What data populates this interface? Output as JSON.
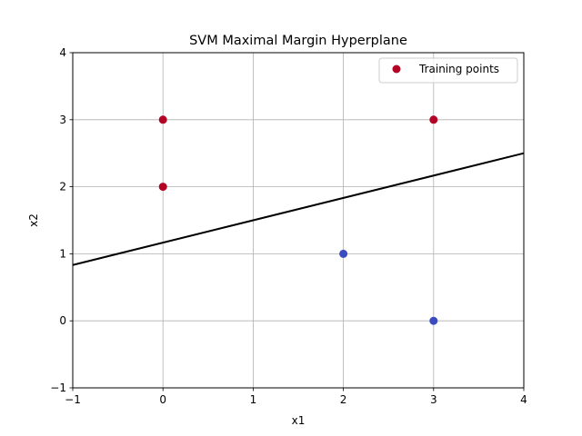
{
  "chart_data": {
    "type": "scatter",
    "title": "SVM Maximal Margin Hyperplane",
    "xlabel": "x1",
    "ylabel": "x2",
    "xlim": [
      -1,
      4
    ],
    "ylim": [
      -1,
      4
    ],
    "xticks": [
      -1,
      0,
      1,
      2,
      3,
      4
    ],
    "yticks": [
      -1,
      0,
      1,
      2,
      3,
      4
    ],
    "xtick_labels": [
      "−1",
      "0",
      "1",
      "2",
      "3",
      "4"
    ],
    "ytick_labels": [
      "−1",
      "0",
      "1",
      "2",
      "3",
      "4"
    ],
    "grid": true,
    "legend": {
      "position": "top-right",
      "entries": [
        "Training points"
      ]
    },
    "series": [
      {
        "name": "Training points",
        "points": [
          {
            "x": 0,
            "y": 3,
            "class": "red"
          },
          {
            "x": 0,
            "y": 2,
            "class": "red"
          },
          {
            "x": 3,
            "y": 3,
            "class": "red"
          },
          {
            "x": 2,
            "y": 1,
            "class": "blue"
          },
          {
            "x": 3,
            "y": 0,
            "class": "blue"
          }
        ]
      }
    ],
    "hyperplane": {
      "x": [
        -1,
        4
      ],
      "y": [
        0.833,
        2.5
      ]
    },
    "colors": {
      "red": "#b40426",
      "blue": "#3b4cc0",
      "line": "#000000",
      "grid": "#b0b0b0"
    }
  }
}
